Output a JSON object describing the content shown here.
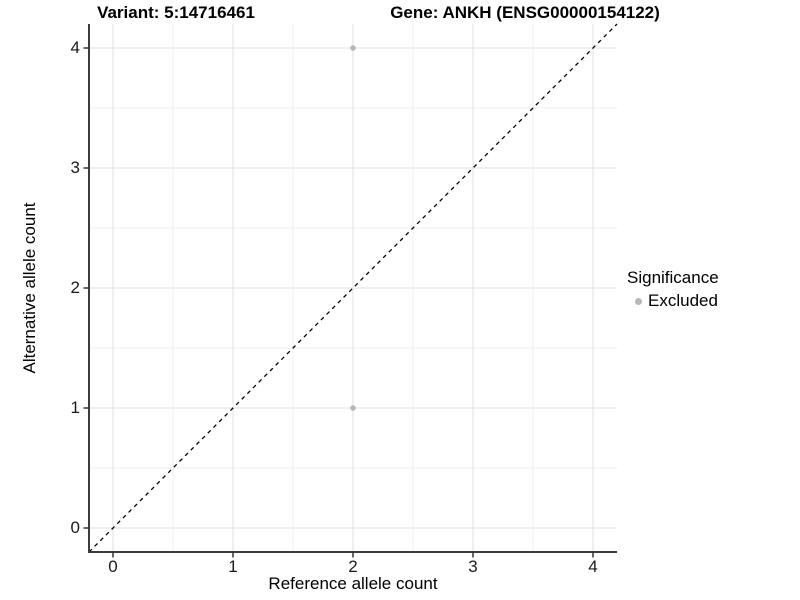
{
  "chart_data": {
    "type": "scatter",
    "title_variant": "Variant: 5:14716461",
    "title_gene": "Gene: ANKH (ENSG00000154122)",
    "xlabel": "Reference allele count",
    "ylabel": "Alternative allele count",
    "xlim": [
      -0.2,
      4.2
    ],
    "ylim": [
      -0.2,
      4.2
    ],
    "xticks": [
      0,
      1,
      2,
      3,
      4
    ],
    "yticks": [
      0,
      1,
      2,
      3,
      4
    ],
    "minor_xticks": [
      0.5,
      1.5,
      2.5,
      3.5
    ],
    "minor_yticks": [
      0.5,
      1.5,
      2.5,
      3.5
    ],
    "grid": true,
    "points": [
      {
        "x": 2,
        "y": 4,
        "significance": "Excluded"
      },
      {
        "x": 2,
        "y": 1,
        "significance": "Excluded"
      }
    ],
    "identity_line": {
      "style": "dashed",
      "from": [
        -0.2,
        -0.2
      ],
      "to": [
        4.2,
        4.2
      ],
      "color": "#000000"
    },
    "legend_position": "right",
    "legend": {
      "title": "Significance",
      "items": [
        {
          "label": "Excluded",
          "color": "#b7b7b7"
        }
      ]
    },
    "colors": {
      "point": "#b7b7b7",
      "grid_major": "#e2e2e2",
      "grid_minor": "#efefef",
      "axis_line": "#3c3c3c",
      "tick_mark": "#333333"
    }
  }
}
